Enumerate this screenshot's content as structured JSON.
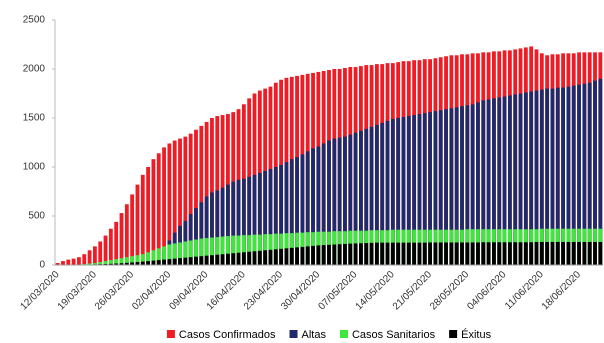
{
  "chart_data": {
    "type": "bar",
    "categories": [
      "12/03/2020",
      null,
      null,
      null,
      null,
      null,
      null,
      "19/03/2020",
      null,
      null,
      null,
      null,
      null,
      null,
      "26/03/2020",
      null,
      null,
      null,
      null,
      null,
      null,
      "02/04/2020",
      null,
      null,
      null,
      null,
      null,
      null,
      "09/04/2020",
      null,
      null,
      null,
      null,
      null,
      null,
      "16/04/2020",
      null,
      null,
      null,
      null,
      null,
      null,
      "23/04/2020",
      null,
      null,
      null,
      null,
      null,
      null,
      "30/04/2020",
      null,
      null,
      null,
      null,
      null,
      null,
      "07/05/2020",
      null,
      null,
      null,
      null,
      null,
      null,
      "14/05/2020",
      null,
      null,
      null,
      null,
      null,
      null,
      "21/05/2020",
      null,
      null,
      null,
      null,
      null,
      null,
      "28/05/2020",
      null,
      null,
      null,
      null,
      null,
      null,
      "04/06/2020",
      null,
      null,
      null,
      null,
      null,
      null,
      "11/06/2020",
      null,
      null,
      null,
      null,
      null,
      null,
      "18/06/2020",
      null,
      null,
      null,
      null
    ],
    "series": [
      {
        "name": "Casos Confirmados",
        "color": "#ee1c25",
        "values": [
          20,
          40,
          55,
          65,
          80,
          110,
          150,
          190,
          240,
          300,
          370,
          440,
          530,
          620,
          720,
          820,
          920,
          1000,
          1080,
          1140,
          1200,
          1240,
          1270,
          1290,
          1310,
          1340,
          1380,
          1420,
          1460,
          1500,
          1520,
          1530,
          1540,
          1560,
          1590,
          1640,
          1700,
          1750,
          1780,
          1800,
          1820,
          1860,
          1890,
          1910,
          1920,
          1930,
          1940,
          1950,
          1960,
          1970,
          1980,
          1990,
          2000,
          2000,
          2010,
          2020,
          2020,
          2030,
          2040,
          2040,
          2050,
          2050,
          2060,
          2060,
          2070,
          2080,
          2080,
          2090,
          2090,
          2100,
          2100,
          2110,
          2120,
          2130,
          2140,
          2140,
          2150,
          2150,
          2160,
          2160,
          2170,
          2170,
          2180,
          2180,
          2190,
          2190,
          2200,
          2210,
          2220,
          2230,
          2200,
          2160,
          2140,
          2150,
          2150,
          2160,
          2160,
          2160,
          2170,
          2170,
          2170,
          2170,
          2170
        ]
      },
      {
        "name": "Altas",
        "color": "#1f2a6b",
        "values": [
          0,
          0,
          0,
          0,
          0,
          0,
          0,
          0,
          0,
          0,
          0,
          0,
          0,
          0,
          0,
          0,
          0,
          0,
          0,
          0,
          150,
          250,
          330,
          400,
          450,
          520,
          580,
          640,
          700,
          740,
          760,
          790,
          820,
          850,
          870,
          880,
          900,
          920,
          940,
          960,
          980,
          1000,
          1020,
          1050,
          1080,
          1100,
          1130,
          1160,
          1190,
          1210,
          1240,
          1270,
          1290,
          1300,
          1310,
          1330,
          1350,
          1370,
          1390,
          1410,
          1430,
          1450,
          1470,
          1490,
          1500,
          1510,
          1520,
          1530,
          1540,
          1550,
          1560,
          1570,
          1580,
          1590,
          1600,
          1610,
          1620,
          1630,
          1640,
          1660,
          1680,
          1690,
          1700,
          1710,
          1720,
          1730,
          1740,
          1750,
          1760,
          1770,
          1780,
          1790,
          1800,
          1800,
          1810,
          1810,
          1820,
          1830,
          1840,
          1850,
          1860,
          1880,
          1900
        ]
      },
      {
        "name": "Casos Sanitarios",
        "color": "#3ee63e",
        "values": [
          0,
          0,
          0,
          0,
          5,
          10,
          15,
          20,
          30,
          40,
          50,
          60,
          70,
          80,
          90,
          100,
          110,
          130,
          150,
          170,
          190,
          210,
          220,
          230,
          240,
          250,
          260,
          270,
          275,
          280,
          285,
          290,
          295,
          300,
          300,
          305,
          305,
          310,
          310,
          315,
          315,
          320,
          320,
          325,
          325,
          330,
          330,
          335,
          335,
          340,
          340,
          340,
          345,
          345,
          345,
          350,
          350,
          350,
          350,
          355,
          355,
          355,
          355,
          360,
          360,
          360,
          360,
          360,
          360,
          360,
          360,
          360,
          360,
          360,
          360,
          360,
          360,
          365,
          365,
          365,
          365,
          365,
          365,
          365,
          365,
          365,
          365,
          365,
          365,
          365,
          365,
          370,
          370,
          370,
          370,
          370,
          370,
          370,
          370,
          370,
          370,
          370,
          370
        ]
      },
      {
        "name": "Éxitus",
        "color": "#000000",
        "values": [
          0,
          0,
          0,
          0,
          0,
          2,
          4,
          6,
          8,
          10,
          12,
          15,
          18,
          22,
          26,
          30,
          35,
          40,
          45,
          50,
          55,
          60,
          65,
          70,
          75,
          80,
          85,
          90,
          95,
          100,
          105,
          110,
          115,
          120,
          125,
          130,
          135,
          140,
          145,
          150,
          155,
          160,
          165,
          170,
          175,
          180,
          185,
          190,
          195,
          200,
          203,
          206,
          209,
          212,
          215,
          218,
          220,
          222,
          224,
          226,
          228,
          228,
          228,
          228,
          228,
          228,
          228,
          228,
          228,
          228,
          230,
          230,
          230,
          230,
          230,
          230,
          230,
          230,
          230,
          230,
          232,
          232,
          232,
          232,
          232,
          232,
          232,
          232,
          232,
          232,
          235,
          235,
          235,
          235,
          235,
          235,
          235,
          235,
          235,
          235,
          235,
          235,
          235
        ]
      }
    ],
    "ylim": [
      0,
      2500
    ],
    "yticks": [
      0,
      500,
      1000,
      1500,
      2000,
      2500
    ],
    "grid": false,
    "legend": "bottom"
  }
}
